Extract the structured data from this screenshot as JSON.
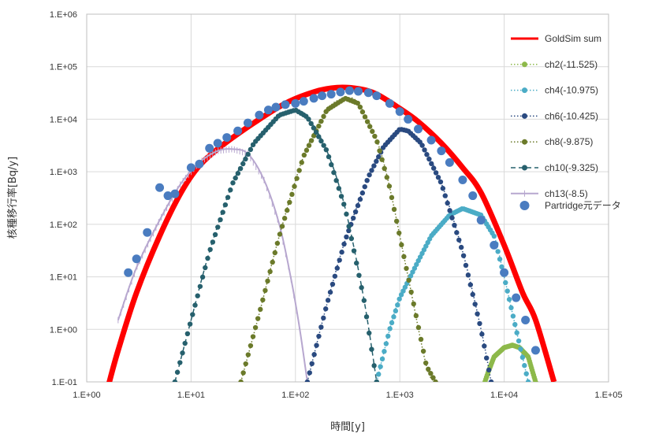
{
  "chart_data": {
    "type": "scatter",
    "title": "",
    "xlabel": "時間[y]",
    "ylabel": "核種移行率[Bq/y]",
    "xscale": "log",
    "yscale": "log",
    "xlim": [
      1,
      100000
    ],
    "ylim": [
      0.1,
      1000000
    ],
    "x_ticks": [
      "1.E+00",
      "1.E+01",
      "1.E+02",
      "1.E+03",
      "1.E+04",
      "1.E+05"
    ],
    "y_ticks": [
      "1.E-01",
      "1.E+00",
      "1.E+01",
      "1.E+02",
      "1.E+03",
      "1.E+04",
      "1.E+05",
      "1.E+06"
    ],
    "grid": "vertical and horizontal major gridlines",
    "legend_position": "right",
    "series": [
      {
        "name": "GoldSim sum",
        "style": "line",
        "color": "#ff0000",
        "x": [
          1.6,
          2,
          3,
          5,
          8,
          12,
          20,
          40,
          80,
          150,
          250,
          400,
          600,
          1000,
          1500,
          2500,
          4000,
          6000,
          10000,
          15000,
          20000,
          30000
        ],
        "y": [
          0.08,
          0.4,
          5,
          60,
          400,
          1300,
          3200,
          8500,
          20000,
          33000,
          40000,
          38000,
          30000,
          16000,
          9000,
          3500,
          1200,
          400,
          40,
          5,
          1.5,
          0.1
        ]
      },
      {
        "name": "ch2(-11.525)",
        "style": "dotted-marker",
        "color": "#8db94a",
        "x": [
          6000,
          7000,
          8000,
          10000,
          12000,
          14000,
          17000,
          20000
        ],
        "y": [
          0.06,
          0.15,
          0.3,
          0.45,
          0.5,
          0.45,
          0.3,
          0.1
        ]
      },
      {
        "name": "ch4(-10.975)",
        "style": "dotted-marker",
        "color": "#4bacc6",
        "x": [
          600,
          800,
          1000,
          1500,
          2000,
          3000,
          4000,
          6000,
          8000,
          10000,
          13000,
          17000
        ],
        "y": [
          0.1,
          1,
          4,
          20,
          60,
          150,
          200,
          150,
          60,
          10,
          1,
          0.1
        ]
      },
      {
        "name": "ch6(-10.425)",
        "style": "dotted-marker",
        "color": "#2a4a80",
        "x": [
          130,
          200,
          300,
          500,
          700,
          1000,
          1200,
          1600,
          2500,
          4000,
          6000,
          7500
        ],
        "y": [
          0.1,
          3,
          50,
          800,
          3000,
          6500,
          6000,
          3500,
          600,
          30,
          1,
          0.1
        ]
      },
      {
        "name": "ch8(-9.875)",
        "style": "dotted-marker",
        "color": "#6b7a2a",
        "x": [
          30,
          45,
          70,
          120,
          200,
          300,
          400,
          600,
          800,
          1200,
          1800,
          2200
        ],
        "y": [
          0.1,
          2,
          60,
          2000,
          15000,
          25000,
          20000,
          4000,
          500,
          10,
          0.2,
          0.1
        ]
      },
      {
        "name": "ch10(-9.325)",
        "style": "dashed-marker",
        "color": "#26606d",
        "x": [
          7,
          10,
          15,
          25,
          40,
          70,
          100,
          130,
          200,
          300,
          450,
          600
        ],
        "y": [
          0.1,
          1.5,
          30,
          600,
          3500,
          12000,
          15000,
          11000,
          2500,
          200,
          4,
          0.1
        ]
      },
      {
        "name": "ch13(-8.5)",
        "style": "line",
        "color": "#b7a7cf",
        "x": [
          2,
          3,
          5,
          8,
          12,
          18,
          25,
          35,
          50,
          70,
          90,
          110,
          130
        ],
        "y": [
          1.5,
          15,
          120,
          600,
          1500,
          2500,
          2700,
          2200,
          700,
          100,
          10,
          1,
          0.1
        ]
      },
      {
        "name": "Partridge元データ",
        "style": "marker",
        "color": "#4a7cc0",
        "x": [
          2.5,
          3,
          3.8,
          5,
          6,
          7,
          10,
          12,
          15,
          18,
          22,
          28,
          35,
          45,
          55,
          65,
          80,
          100,
          120,
          150,
          180,
          220,
          270,
          330,
          400,
          500,
          600,
          800,
          1000,
          1200,
          1500,
          2000,
          2500,
          3000,
          4000,
          5000,
          6000,
          8000,
          10000,
          13000,
          16000,
          20000
        ],
        "y": [
          12,
          22,
          70,
          500,
          350,
          380,
          1200,
          1400,
          2800,
          3500,
          4500,
          6000,
          8500,
          12000,
          15000,
          17000,
          19000,
          20000,
          22000,
          25000,
          28000,
          30000,
          33000,
          35000,
          34000,
          32000,
          28000,
          20000,
          14000,
          10000,
          6500,
          4000,
          2500,
          1500,
          700,
          350,
          120,
          40,
          12,
          4,
          1.5,
          0.4
        ]
      }
    ]
  }
}
